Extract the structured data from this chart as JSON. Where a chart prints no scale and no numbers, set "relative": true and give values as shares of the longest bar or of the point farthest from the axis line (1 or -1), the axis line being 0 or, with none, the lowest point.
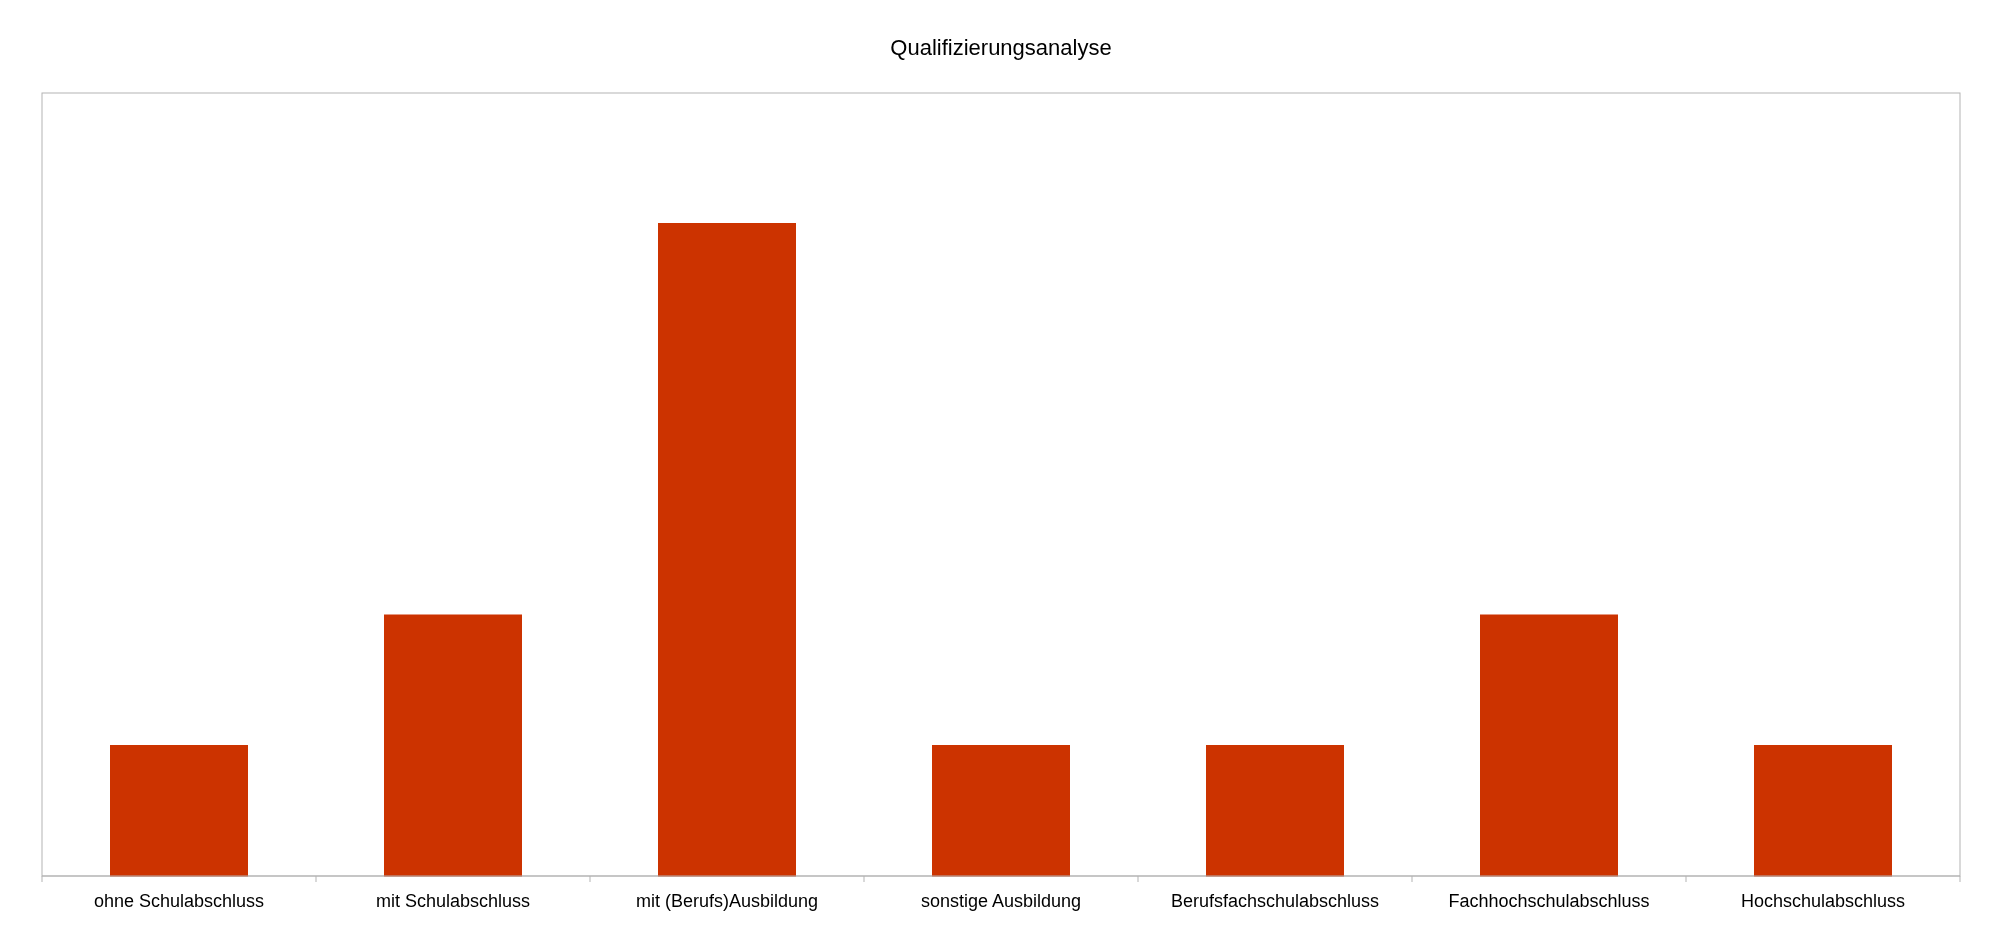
{
  "chart_data": {
    "type": "bar",
    "title": "Qualifizierungsanalyse",
    "categories": [
      "ohne Schulabschluss",
      "mit Schulabschluss",
      "mit (Berufs)Ausbildung",
      "sonstige Ausbildung",
      "Berufsfachschulabschluss",
      "Fachhochschulabschluss",
      "Hochschulabschluss"
    ],
    "values": [
      0.2,
      0.4,
      1,
      0.2,
      0.2,
      0.4,
      0.2
    ],
    "color": "#cc3300",
    "relative": true
  }
}
